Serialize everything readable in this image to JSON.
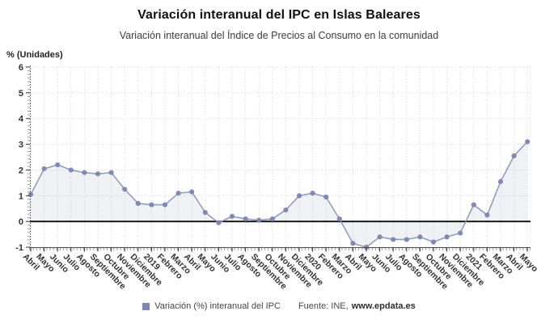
{
  "header": {
    "title": "Variación interanual del IPC en Islas Baleares",
    "subtitle": "Variación interanual del Índice de Precios al Consumo en la comunidad"
  },
  "chart_data": {
    "type": "line",
    "title": "Variación interanual del IPC en Islas Baleares",
    "subtitle": "Variación interanual del Índice de Precios al Consumo en la comunidad",
    "unit_label": "% (Unidades)",
    "categories": [
      "Abril",
      "Mayo",
      "Junio",
      "Julio",
      "Agosto",
      "Septiembre",
      "Octubre",
      "Noviembre",
      "Diciembre",
      "2019",
      "Febrero",
      "Marzo",
      "Abril",
      "Mayo",
      "Junio",
      "Julio",
      "Agosto",
      "Septiembre",
      "Octubre",
      "Noviembre",
      "Diciembre",
      "2020",
      "Febrero",
      "Marzo",
      "Abril",
      "Mayo",
      "Junio",
      "Julio",
      "Agosto",
      "Septiembre",
      "Octubre",
      "Noviembre",
      "Diciembre",
      "2021",
      "Febrero",
      "Marzo",
      "Abril",
      "Mayo"
    ],
    "series": [
      {
        "name": "Variación (%) interanual del IPC",
        "values": [
          1.05,
          2.05,
          2.2,
          2.0,
          1.9,
          1.85,
          1.9,
          1.25,
          0.7,
          0.65,
          0.65,
          1.1,
          1.15,
          0.35,
          -0.05,
          0.2,
          0.1,
          0.05,
          0.1,
          0.45,
          1.0,
          1.1,
          0.95,
          0.1,
          -0.85,
          -1.0,
          -0.6,
          -0.7,
          -0.7,
          -0.6,
          -0.8,
          -0.6,
          -0.45,
          0.65,
          0.25,
          1.55,
          2.55,
          3.1
        ]
      }
    ],
    "xlabel": "",
    "ylabel": "% (Unidades)",
    "ylim": [
      -1,
      6
    ],
    "yticks": [
      -1,
      0,
      1,
      2,
      3,
      4,
      5,
      6
    ],
    "grid": true,
    "legend_position": "bottom",
    "marker": "circle",
    "fill_to_zero": true,
    "x_label_rotation": 45,
    "colors": {
      "line": "#8a92b6",
      "marker": "#7a84ae",
      "area_fill": "rgba(126,136,174,0.12)",
      "zero_line": "#1a1a1a",
      "grid": "#d9d9d9",
      "axis": "#4a4a4a",
      "tick_text": "#333333"
    }
  },
  "legend": {
    "label": "Variación (%) interanual del IPC",
    "swatch_color": "#7e88ae"
  },
  "footer": {
    "source_prefix": "Fuente: INE,",
    "source_site": "www.epdata.es"
  }
}
